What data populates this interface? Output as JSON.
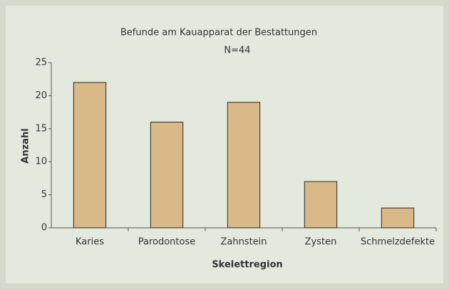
{
  "chart_data": {
    "type": "bar",
    "title": "Befunde am Kauapparat der Bestattungen",
    "subtitle": "N=44",
    "x_label": "Skelettregion",
    "y_label": "Anzahl",
    "categories": [
      "Karies",
      "Parodontose",
      "Zahnstein",
      "Zysten",
      "Schmelzdefekte"
    ],
    "values": [
      22,
      16,
      19,
      7,
      3
    ],
    "color": "#d8b987",
    "ylim": [
      0,
      25
    ],
    "yticks": [
      0,
      5,
      10,
      15,
      20,
      25
    ],
    "grid": false
  }
}
